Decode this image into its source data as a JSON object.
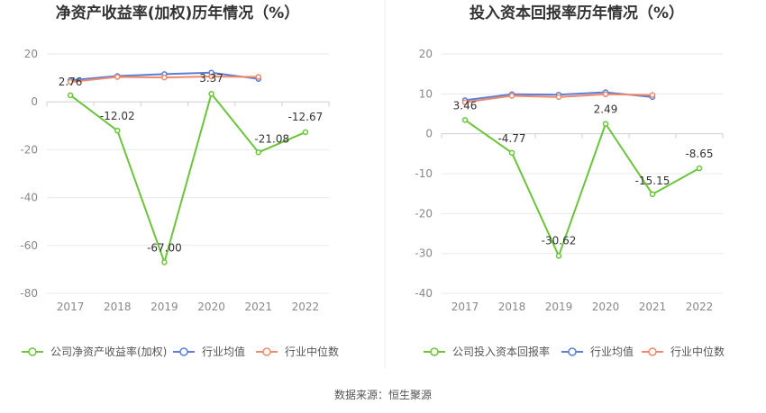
{
  "chart_data": [
    {
      "type": "line",
      "title": "净资产收益率(加权)历年情况（%）",
      "categories": [
        "2017",
        "2018",
        "2019",
        "2020",
        "2021",
        "2022"
      ],
      "ylim": [
        -80,
        20
      ],
      "yticks": [
        "20",
        "0",
        "-20",
        "-40",
        "-60",
        "-80"
      ],
      "ytick_values": [
        20,
        0,
        -20,
        -40,
        -60,
        -80
      ],
      "grid": true,
      "legend_position": "bottom",
      "series": [
        {
          "name": "公司净资产收益率(加权)",
          "color": "#6bc43a",
          "values": [
            2.76,
            -12.02,
            -67.0,
            3.37,
            -21.08,
            -12.67
          ],
          "labels": [
            "2.76",
            "-12.02",
            "-67.00",
            "3.37",
            "-21.08",
            "-12.67"
          ]
        },
        {
          "name": "行业均值",
          "color": "#5b7fd6",
          "values": [
            9.0,
            10.8,
            11.6,
            12.2,
            9.6,
            null
          ]
        },
        {
          "name": "行业中位数",
          "color": "#f0896a",
          "values": [
            8.3,
            10.4,
            10.2,
            10.6,
            10.4,
            null
          ]
        }
      ]
    },
    {
      "type": "line",
      "title": "投入资本回报率历年情况（%）",
      "categories": [
        "2017",
        "2018",
        "2019",
        "2020",
        "2021",
        "2022"
      ],
      "ylim": [
        -40,
        20
      ],
      "yticks": [
        "20",
        "10",
        "0",
        "-10",
        "-20",
        "-30",
        "-40"
      ],
      "ytick_values": [
        20,
        10,
        0,
        -10,
        -20,
        -30,
        -40
      ],
      "grid": true,
      "legend_position": "bottom",
      "series": [
        {
          "name": "公司投入资本回报率",
          "color": "#6bc43a",
          "values": [
            3.46,
            -4.77,
            -30.62,
            2.49,
            -15.15,
            -8.65
          ],
          "labels": [
            "3.46",
            "-4.77",
            "-30.62",
            "2.49",
            "-15.15",
            "-8.65"
          ]
        },
        {
          "name": "行业均值",
          "color": "#5b7fd6",
          "values": [
            8.4,
            9.9,
            9.8,
            10.4,
            9.2,
            null
          ]
        },
        {
          "name": "行业中位数",
          "color": "#f0896a",
          "values": [
            7.9,
            9.5,
            9.2,
            9.9,
            9.7,
            null
          ]
        }
      ]
    }
  ],
  "footer": {
    "source": "数据来源：恒生聚源"
  }
}
